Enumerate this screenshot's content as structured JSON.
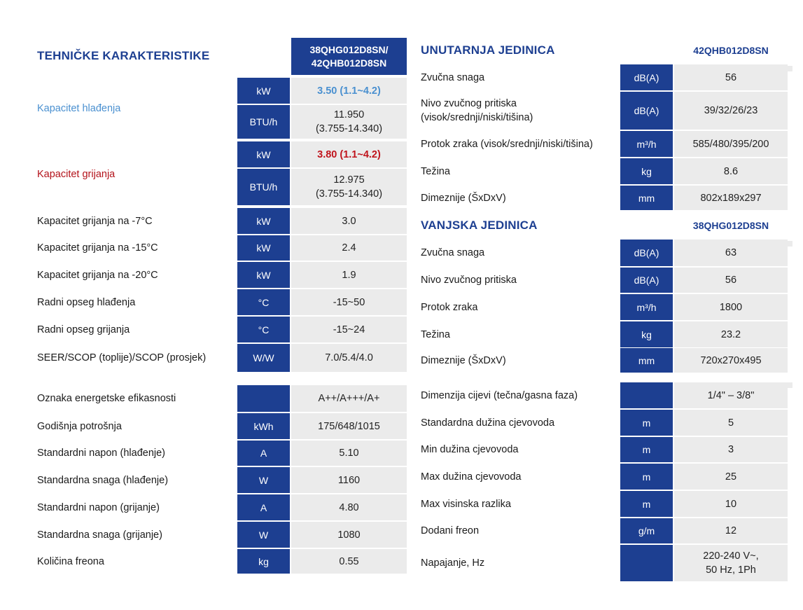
{
  "left": {
    "title": "TEHNIČKE KARAKTERISTIKE",
    "model": "38QHG012D8SN/\n42QHB012D8SN",
    "cooling_label": "Kapacitet hlađenja",
    "heating_label": "Kapacitet grijanja",
    "cooling_rows": [
      {
        "unit": "kW",
        "value": "3.50 (1.1~4.2)"
      },
      {
        "unit": "BTU/h",
        "value": "11.950\n(3.755-14.340)"
      }
    ],
    "heating_rows": [
      {
        "unit": "kW",
        "value": "3.80 (1.1~4.2)"
      },
      {
        "unit": "BTU/h",
        "value": "12.975\n(3.755-14.340)"
      }
    ],
    "rows_a": [
      {
        "label": "Kapacitet grijanja na -7°C",
        "unit": "kW",
        "value": "3.0"
      },
      {
        "label": "Kapacitet grijanja na -15°C",
        "unit": "kW",
        "value": "2.4"
      },
      {
        "label": "Kapacitet grijanja na -20°C",
        "unit": "kW",
        "value": "1.9"
      },
      {
        "label": "Radni opseg hlađenja",
        "unit": "°C",
        "value": "-15~50"
      },
      {
        "label": "Radni opseg grijanja",
        "unit": "°C",
        "value": "-15~24"
      },
      {
        "label": "SEER/SCOP (toplije)/SCOP (prosjek)",
        "unit": "W/W",
        "value": "7.0/5.4/4.0"
      }
    ],
    "rows_b": [
      {
        "label": "Oznaka energetske efikasnosti",
        "unit": "",
        "value": "A++/A+++/A+"
      },
      {
        "label": "Godišnja potrošnja",
        "unit": "kWh",
        "value": "175/648/1015"
      },
      {
        "label": "Standardni napon (hlađenje)",
        "unit": "A",
        "value": "5.10"
      },
      {
        "label": "Standardna snaga (hlađenje)",
        "unit": "W",
        "value": "1160"
      },
      {
        "label": "Standardni napon (grijanje)",
        "unit": "A",
        "value": "4.80"
      },
      {
        "label": "Standardna snaga (grijanje)",
        "unit": "W",
        "value": "1080"
      },
      {
        "label": "Količina freona",
        "unit": "kg",
        "value": "0.55"
      }
    ]
  },
  "indoor": {
    "title": "UNUTARNJA JEDINICA",
    "model": "42QHB012D8SN",
    "rows": [
      {
        "label": "Zvučna snaga",
        "unit": "dB(A)",
        "value": "56"
      },
      {
        "label": "Nivo zvučnog pritiska\n(visok/srednji/niski/tišina)",
        "unit": "dB(A)",
        "value": "39/32/26/23"
      },
      {
        "label": "Protok zraka (visok/srednji/niski/tišina)",
        "unit": "m³/h",
        "value": "585/480/395/200"
      },
      {
        "label": "Težina",
        "unit": "kg",
        "value": "8.6"
      },
      {
        "label": "Dimeznije (ŠxDxV)",
        "unit": "mm",
        "value": "802x189x297"
      }
    ]
  },
  "outdoor": {
    "title": "VANJSKA JEDINICA",
    "model": "38QHG012D8SN",
    "rows": [
      {
        "label": "Zvučna snaga",
        "unit": "dB(A)",
        "value": "63"
      },
      {
        "label": "Nivo zvučnog pritiska",
        "unit": "dB(A)",
        "value": "56"
      },
      {
        "label": "Protok zraka",
        "unit": "m³/h",
        "value": "1800"
      },
      {
        "label": "Težina",
        "unit": "kg",
        "value": "23.2"
      },
      {
        "label": "Dimeznije (ŠxDxV)",
        "unit": "mm",
        "value": "720x270x495"
      }
    ]
  },
  "piping": {
    "rows": [
      {
        "label": "Dimenzija cijevi (tečna/gasna faza)",
        "unit": "",
        "value": "1/4\" – 3/8\""
      },
      {
        "label": "Standardna dužina cjevovoda",
        "unit": "m",
        "value": "5"
      },
      {
        "label": "Min dužina cjevovoda",
        "unit": "m",
        "value": "3"
      },
      {
        "label": "Max dužina cjevovoda",
        "unit": "m",
        "value": "25"
      },
      {
        "label": "Max visinska razlika",
        "unit": "m",
        "value": "10"
      },
      {
        "label": "Dodani freon",
        "unit": "g/m",
        "value": "12"
      },
      {
        "label": "Napajanje, Hz",
        "unit": "",
        "value": "220-240 V~,\n50 Hz, 1Ph"
      }
    ]
  },
  "colors": {
    "brand": "#1d3f91",
    "cell": "#ebebeb",
    "cool": "#4a90d0",
    "heat": "#c0141c"
  }
}
